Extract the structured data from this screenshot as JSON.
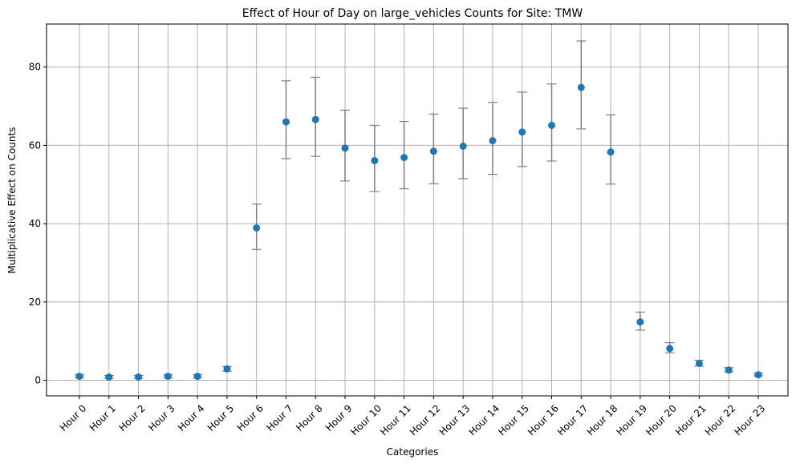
{
  "chart_data": {
    "type": "scatter",
    "title": "Effect of Hour of Day on large_vehicles Counts for Site: TMW",
    "xlabel": "Categories",
    "ylabel": "Multiplicative Effect on Counts",
    "grid": true,
    "ylim": [
      -4,
      91
    ],
    "yticks": [
      0,
      20,
      40,
      60,
      80
    ],
    "categories": [
      "Hour 0",
      "Hour 1",
      "Hour 2",
      "Hour 3",
      "Hour 4",
      "Hour 5",
      "Hour 6",
      "Hour 7",
      "Hour 8",
      "Hour 9",
      "Hour 10",
      "Hour 11",
      "Hour 12",
      "Hour 13",
      "Hour 14",
      "Hour 15",
      "Hour 16",
      "Hour 17",
      "Hour 18",
      "Hour 19",
      "Hour 20",
      "Hour 21",
      "Hour 22",
      "Hour 23"
    ],
    "values": [
      1.0,
      0.8,
      0.8,
      1.0,
      1.0,
      2.9,
      38.9,
      66.0,
      66.6,
      59.3,
      56.1,
      56.9,
      58.5,
      59.8,
      61.2,
      63.4,
      65.1,
      74.8,
      58.3,
      14.9,
      8.1,
      4.3,
      2.6,
      1.4
    ],
    "lower": [
      0.6,
      0.5,
      0.5,
      0.6,
      0.6,
      2.3,
      33.4,
      56.6,
      57.2,
      50.9,
      48.2,
      48.9,
      50.2,
      51.5,
      52.6,
      54.6,
      56.0,
      64.2,
      50.1,
      12.8,
      7.0,
      3.6,
      2.1,
      1.1
    ],
    "upper": [
      1.4,
      1.2,
      1.2,
      1.4,
      1.4,
      3.5,
      45.0,
      76.5,
      77.4,
      69.0,
      65.1,
      66.1,
      68.0,
      69.5,
      71.0,
      73.6,
      75.7,
      86.7,
      67.8,
      17.4,
      9.6,
      5.1,
      3.2,
      1.8
    ],
    "colors": {
      "point": "#1f77b4",
      "errorbar": "#808080",
      "grid": "#b0b0b0"
    }
  }
}
